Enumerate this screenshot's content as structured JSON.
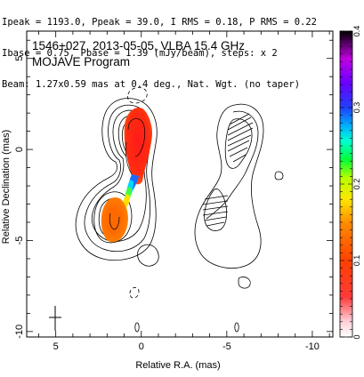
{
  "header": {
    "lines": [
      "Ipeak = 1193.0, Ppeak = 39.0, I RMS = 0.18, P RMS = 0.22",
      "Ibase = 0.75, Pbase = 1.39 (mJy/beam), steps: x 2",
      "Beam: 1.27x0.59 mas at 0.4 deg., Nat. Wgt. (no taper)"
    ]
  },
  "chart_data": {
    "type": "contour",
    "title_line1": "1546+027, 2013-05-05, VLBA 15.4 GHz",
    "title_line2": "MOJAVE Program",
    "xlabel": "Relative R.A. (mas)",
    "ylabel": "Relative Declination (mas)",
    "xlim": [
      6.7,
      -11.2
    ],
    "ylim": [
      -10.3,
      6.5
    ],
    "xticks": [
      "5",
      "0",
      "-5",
      "-10"
    ],
    "yticks": [
      "5",
      "0",
      "-5",
      "-10"
    ],
    "colorbar": {
      "min": 0,
      "max": 0.4,
      "ticks": [
        "0",
        "0.1",
        "0.2",
        "0.3",
        "0.4"
      ]
    },
    "panels": [
      "total intensity contours with polarization color",
      "polarization contours with EVPA ticks"
    ]
  }
}
